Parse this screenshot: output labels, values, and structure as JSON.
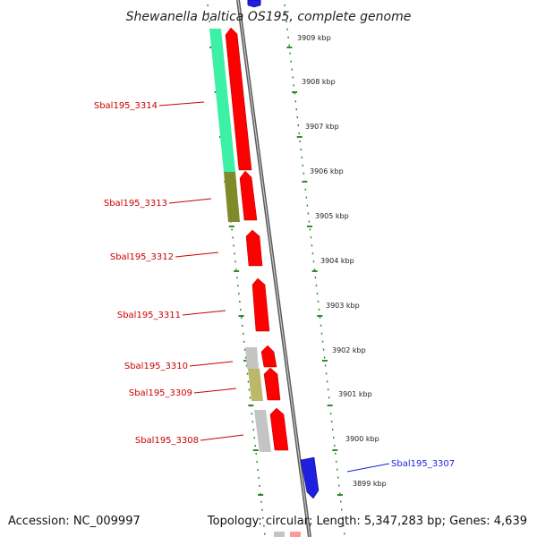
{
  "title": "Shewanella baltica OS195, complete genome",
  "footer": {
    "accession": "Accession: NC_009997",
    "topology": "Topology: circular; Length: 5,347,283 bp; Genes: 4,639"
  },
  "colors": {
    "forward_gene": "#ff0000",
    "reverse_gene": "#1f1fe0",
    "reverse_label": "#1f1fe0",
    "forward_label": "#cc0000",
    "tick": "#2e8b2e",
    "cog_aquamarine": "#3cf0a6",
    "cog_olive": "#7f8a2a",
    "cog_khaki": "#bdb76b",
    "cog_gray": "#c4c4c4",
    "backbone": "#8a8a8a"
  },
  "kbp_labels": [
    "3909 kbp",
    "3908 kbp",
    "3907 kbp",
    "3906 kbp",
    "3905 kbp",
    "3904 kbp",
    "3903 kbp",
    "3902 kbp",
    "3901 kbp",
    "3900 kbp",
    "3899 kbp"
  ],
  "gene_labels": [
    {
      "name": "Sbal195_3314",
      "strand": "forward"
    },
    {
      "name": "Sbal195_3313",
      "strand": "forward"
    },
    {
      "name": "Sbal195_3312",
      "strand": "forward"
    },
    {
      "name": "Sbal195_3311",
      "strand": "forward"
    },
    {
      "name": "Sbal195_3310",
      "strand": "forward"
    },
    {
      "name": "Sbal195_3309",
      "strand": "forward"
    },
    {
      "name": "Sbal195_3308",
      "strand": "forward"
    },
    {
      "name": "Sbal195_3307",
      "strand": "reverse"
    }
  ]
}
